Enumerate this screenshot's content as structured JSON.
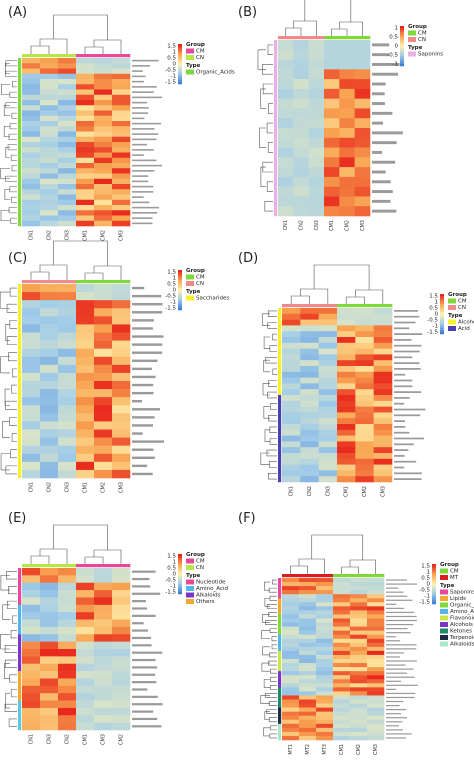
{
  "figure": {
    "colorscale": [
      "#3f7fd6",
      "#a3cde8",
      "#fff3b0",
      "#f8a451",
      "#e8261b"
    ],
    "chart_data": [
      {
        "type": "heatmap",
        "panel_label": "(A)",
        "columns": [
          "CN1",
          "CN2",
          "CN3",
          "CM1",
          "CM2",
          "CM3"
        ],
        "groups": [
          {
            "name": "CM",
            "color": "#e8479a"
          },
          {
            "name": "CN",
            "color": "#b8e645"
          }
        ],
        "group_of_col": [
          "CN",
          "CN",
          "CN",
          "CM",
          "CM",
          "CM"
        ],
        "types": [
          {
            "name": "Organic_Acids",
            "color": "#7fd83a"
          }
        ],
        "legend_scale": [
          "1.5",
          "1",
          "0.5",
          "0",
          "-0.5",
          "-1",
          "-1.5"
        ],
        "rows": 32,
        "row_type_colors": [
          "#7fd83a"
        ]
      },
      {
        "type": "heatmap",
        "panel_label": "(B)",
        "columns": [
          "CN1",
          "CN2",
          "CN3",
          "CM1",
          "CM2",
          "CM3"
        ],
        "groups": [
          {
            "name": "CM",
            "color": "#7fd83a"
          },
          {
            "name": "CN",
            "color": "#f28a8a"
          }
        ],
        "group_of_col": [
          "CN",
          "CN",
          "CN",
          "CM",
          "CM",
          "CM"
        ],
        "types": [
          {
            "name": "Saponins",
            "color": "#e9b0e6"
          }
        ],
        "legend_scale": [
          "1",
          "0.5",
          "0",
          "-0.5",
          "-1"
        ],
        "rows": 18,
        "row_type_colors": [
          "#e9b0e6"
        ]
      },
      {
        "type": "heatmap",
        "panel_label": "(C)",
        "columns": [
          "CN1",
          "CN2",
          "CN3",
          "CM1",
          "CM2",
          "CM3"
        ],
        "groups": [
          {
            "name": "CM",
            "color": "#7fd83a"
          },
          {
            "name": "CN",
            "color": "#f28a8a"
          }
        ],
        "group_of_col": [
          "CN",
          "CN",
          "CN",
          "CM",
          "CM",
          "CM"
        ],
        "types": [
          {
            "name": "Saccharides",
            "color": "#f5f02a"
          }
        ],
        "legend_scale": [
          "1.5",
          "1",
          "0.5",
          "0",
          "-0.5",
          "-1",
          "-1.5"
        ],
        "rows": 24,
        "row_type_colors": [
          "#f5f02a"
        ]
      },
      {
        "type": "heatmap",
        "panel_label": "(D)",
        "columns": [
          "CN1",
          "CN2",
          "CN3",
          "CM1",
          "CM2",
          "CM3"
        ],
        "groups": [
          {
            "name": "CM",
            "color": "#7fd83a"
          },
          {
            "name": "CN",
            "color": "#f28a8a"
          }
        ],
        "group_of_col": [
          "CN",
          "CN",
          "CN",
          "CM",
          "CM",
          "CM"
        ],
        "types": [
          {
            "name": "Alcohol",
            "color": "#f5f02a"
          },
          {
            "name": "Acid",
            "color": "#4a3fb0"
          }
        ],
        "legend_scale": [
          "1.5",
          "1",
          "0.5",
          "0",
          "-0.5",
          "-1",
          "-1.5"
        ],
        "rows": 30,
        "row_type_colors": [
          "#f5f02a",
          "#4a3fb0"
        ]
      },
      {
        "type": "heatmap",
        "panel_label": "(E)",
        "columns": [
          "CN1",
          "CN3",
          "CN2",
          "CM1",
          "CM3",
          "CM2"
        ],
        "groups": [
          {
            "name": "CM",
            "color": "#e8479a"
          },
          {
            "name": "CN",
            "color": "#b8e645"
          }
        ],
        "group_of_col": [
          "CN",
          "CN",
          "CN",
          "CM",
          "CM",
          "CM"
        ],
        "types": [
          {
            "name": "Nucleotide",
            "color": "#e8479a"
          },
          {
            "name": "Amino_Acid",
            "color": "#53b6e8"
          },
          {
            "name": "Alkaloids",
            "color": "#7a34c8"
          },
          {
            "name": "Others",
            "color": "#f0a830"
          }
        ],
        "legend_scale": [
          "1.5",
          "1",
          "0.5",
          "0",
          "-0.5",
          "-1",
          "-1.5"
        ],
        "rows": 22,
        "row_type_colors": [
          "#e8479a",
          "#53b6e8",
          "#7a34c8",
          "#f0a830",
          "#5fc7d8"
        ]
      },
      {
        "type": "heatmap",
        "panel_label": "(F)",
        "columns": [
          "MT1",
          "MT2",
          "MT3",
          "CM1",
          "CM2",
          "CM3"
        ],
        "groups": [
          {
            "name": "CM",
            "color": "#7fd83a"
          },
          {
            "name": "MT",
            "color": "#d81e1e"
          }
        ],
        "group_of_col": [
          "MT",
          "MT",
          "MT",
          "CM",
          "CM",
          "CM"
        ],
        "types": [
          {
            "name": "Saponins",
            "color": "#e8479a"
          },
          {
            "name": "Lipids",
            "color": "#f0a830"
          },
          {
            "name": "Organic_Acids",
            "color": "#7fd83a"
          },
          {
            "name": "Amino_Acids",
            "color": "#53b6e8"
          },
          {
            "name": "Flavonoids",
            "color": "#c8e64a"
          },
          {
            "name": "Alcohols",
            "color": "#7a34c8"
          },
          {
            "name": "Ketones",
            "color": "#1e8a6a"
          },
          {
            "name": "Terpenoids",
            "color": "#1e2a40"
          },
          {
            "name": "Alkaloids",
            "color": "#a8e8c8"
          }
        ],
        "legend_scale": [
          "1.5",
          "1",
          "0.5",
          "0",
          "-0.5",
          "-1",
          "-1.5"
        ],
        "rows": 40,
        "row_type_colors": [
          "#e8479a",
          "#f0a830",
          "#7fd83a",
          "#53b6e8",
          "#c8e64a",
          "#7a34c8",
          "#1e8a6a",
          "#1e2a40",
          "#a8e8c8"
        ]
      }
    ]
  }
}
